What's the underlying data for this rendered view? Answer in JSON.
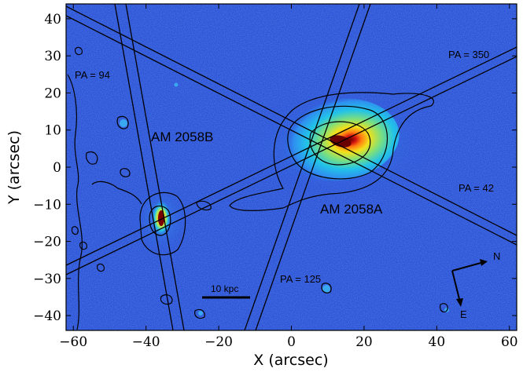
{
  "figure": {
    "xlabel": "X (arcsec)",
    "ylabel": "Y (arcsec)",
    "xlim": [
      -62,
      62
    ],
    "ylim": [
      -44,
      44
    ],
    "xticks": [
      -60,
      -40,
      -20,
      0,
      20,
      40,
      60
    ],
    "yticks": [
      -40,
      -30,
      -20,
      -10,
      0,
      10,
      20,
      30,
      40
    ],
    "xtick_labels": [
      "−60",
      "−40",
      "−20",
      "0",
      "20",
      "40",
      "60"
    ],
    "ytick_labels": [
      "−40",
      "−30",
      "−20",
      "−10",
      "0",
      "10",
      "20",
      "30",
      "40"
    ]
  },
  "labels": {
    "galaxy_a": "AM 2058A",
    "galaxy_b": "AM 2058B",
    "pa_94": "PA = 94",
    "pa_350": "PA = 350",
    "pa_42": "PA = 42",
    "pa_125": "PA = 125",
    "scale_bar": "10 kpc",
    "north": "N",
    "east": "E"
  },
  "colors": {
    "background_field": "#2a4fd6",
    "contour": "#000000",
    "core": "#7a0000"
  }
}
